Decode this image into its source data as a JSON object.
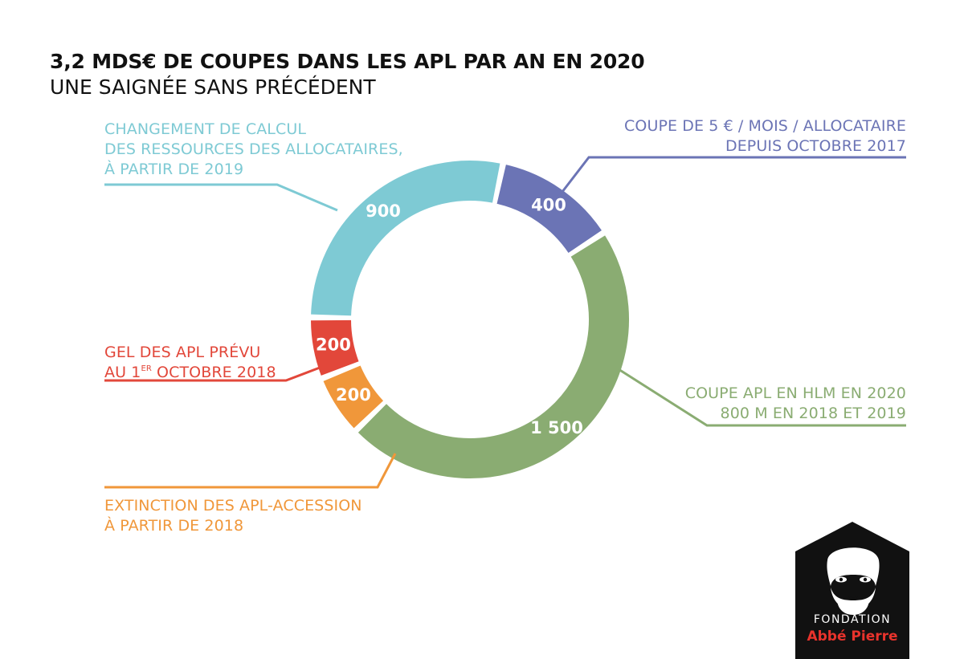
{
  "title": "3,2 MDS€ DE COUPES DANS LES APL PAR AN EN 2020",
  "subtitle": "UNE SAIGNÉE SANS PRÉCÉDENT",
  "chart_data": {
    "type": "pie",
    "title": "3,2 MDS€ DE COUPES DANS LES APL PAR AN EN 2020",
    "subtitle": "UNE SAIGNÉE SANS PRÉCÉDENT",
    "slices": [
      {
        "key": "coupe5",
        "value": 400,
        "display": "400",
        "color": "#6b74b5",
        "label_lines": [
          "COUPE DE 5 € / MOIS / ALLOCATAIRE",
          "DEPUIS OCTOBRE 2017"
        ]
      },
      {
        "key": "hlm",
        "value": 1500,
        "display": "1 500",
        "color": "#8aac72",
        "label_lines": [
          "COUPE APL EN HLM EN 2020",
          "800 M EN 2018 ET 2019"
        ]
      },
      {
        "key": "extinction",
        "value": 200,
        "display": "200",
        "color": "#f0973a",
        "label_lines": [
          "EXTINCTION DES APL-ACCESSION",
          "À PARTIR DE 2018"
        ]
      },
      {
        "key": "gel",
        "value": 200,
        "display": "200",
        "color": "#e2473a",
        "label_lines": [
          "GEL DES APL PRÉVU",
          "AU 1",
          "ER",
          " OCTOBRE 2018"
        ]
      },
      {
        "key": "calcul",
        "value": 900,
        "display": "900",
        "color": "#7ecad4",
        "label_lines": [
          "CHANGEMENT DE CALCUL",
          "DES RESSOURCES DES ALLOCATAIRES,",
          "À PARTIR DE 2019"
        ]
      }
    ]
  },
  "logo": {
    "line1": "FONDATION",
    "line2": "Abbé Pierre",
    "icon": "portrait-house-icon"
  }
}
